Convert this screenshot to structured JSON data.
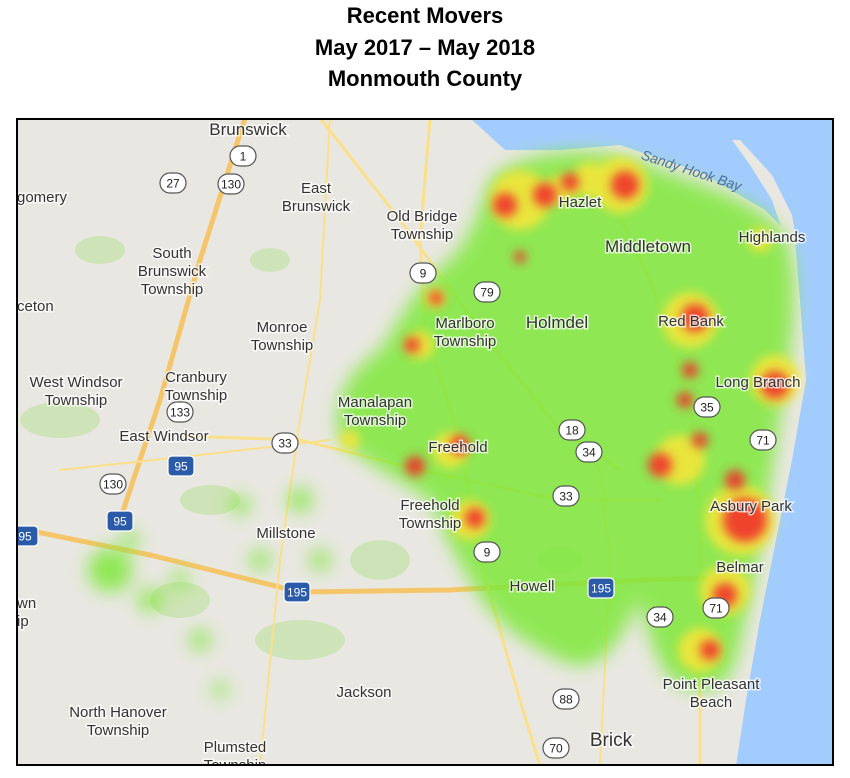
{
  "title_lines": [
    "Recent Movers",
    "May 2017 – May 2018",
    "Monmouth County"
  ],
  "places": [
    [
      "Brunswick"
    ],
    [
      "gomery"
    ],
    [
      "South",
      "Brunswick",
      "Township"
    ],
    [
      "East",
      "Brunswick"
    ],
    [
      "Old Bridge",
      "Township"
    ],
    [
      "ceton"
    ],
    [
      "Monroe",
      "Township"
    ],
    [
      "Marlboro",
      "Township"
    ],
    [
      "Holmdel"
    ],
    [
      "Hazlet"
    ],
    [
      "Middletown"
    ],
    [
      "Highlands"
    ],
    [
      "Red Bank"
    ],
    [
      "Long Branch"
    ],
    [
      "West Windsor",
      "Township"
    ],
    [
      "Cranbury",
      "Township"
    ],
    [
      "Manalapan",
      "Township"
    ],
    [
      "East Windsor"
    ],
    [
      "Freehold"
    ],
    [
      "Freehold",
      "Township"
    ],
    [
      "Millstone"
    ],
    [
      "Asbury Park"
    ],
    [
      "Belmar"
    ],
    [
      "Howell"
    ],
    [
      "wn",
      "ip"
    ],
    [
      "Jackson"
    ],
    [
      "North Hanover",
      "Township"
    ],
    [
      "Point Pleasant",
      "Beach"
    ],
    [
      "Brick"
    ],
    [
      "Plumsted",
      "Township"
    ]
  ],
  "water": "Sandy Hook Bay",
  "routes": [
    "1",
    "27",
    "130",
    "9",
    "79",
    "133",
    "33",
    "18",
    "34",
    "33",
    "35",
    "71",
    "95",
    "95",
    "130",
    "9",
    "195",
    "195",
    "34",
    "71",
    "88",
    "70",
    "95"
  ]
}
